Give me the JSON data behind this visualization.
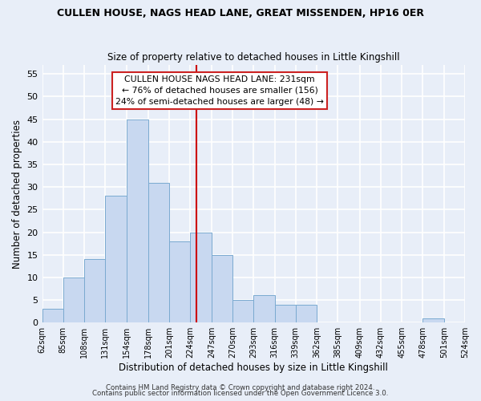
{
  "title": "CULLEN HOUSE, NAGS HEAD LANE, GREAT MISSENDEN, HP16 0ER",
  "subtitle": "Size of property relative to detached houses in Little Kingshill",
  "xlabel": "Distribution of detached houses by size in Little Kingshill",
  "ylabel": "Number of detached properties",
  "bin_edges": [
    62,
    85,
    108,
    131,
    154,
    178,
    201,
    224,
    247,
    270,
    293,
    316,
    339,
    362,
    385,
    409,
    432,
    455,
    478,
    501,
    524
  ],
  "bin_counts": [
    3,
    10,
    14,
    28,
    45,
    31,
    18,
    20,
    15,
    5,
    6,
    4,
    4,
    0,
    0,
    0,
    0,
    0,
    1,
    0
  ],
  "bar_color": "#c8d8f0",
  "bar_edge_color": "#7aaad0",
  "vline_x": 231,
  "vline_color": "#cc0000",
  "annotation_title": "CULLEN HOUSE NAGS HEAD LANE: 231sqm",
  "annotation_line1": "← 76% of detached houses are smaller (156)",
  "annotation_line2": "24% of semi-detached houses are larger (48) →",
  "ylim": [
    0,
    57
  ],
  "yticks": [
    0,
    5,
    10,
    15,
    20,
    25,
    30,
    35,
    40,
    45,
    50,
    55
  ],
  "tick_labels": [
    "62sqm",
    "85sqm",
    "108sqm",
    "131sqm",
    "154sqm",
    "178sqm",
    "201sqm",
    "224sqm",
    "247sqm",
    "270sqm",
    "293sqm",
    "316sqm",
    "339sqm",
    "362sqm",
    "385sqm",
    "409sqm",
    "432sqm",
    "455sqm",
    "478sqm",
    "501sqm",
    "524sqm"
  ],
  "footer1": "Contains HM Land Registry data © Crown copyright and database right 2024.",
  "footer2": "Contains public sector information licensed under the Open Government Licence 3.0.",
  "background_color": "#e8eef8",
  "plot_bg_color": "#e8eef8",
  "grid_color": "#ffffff"
}
